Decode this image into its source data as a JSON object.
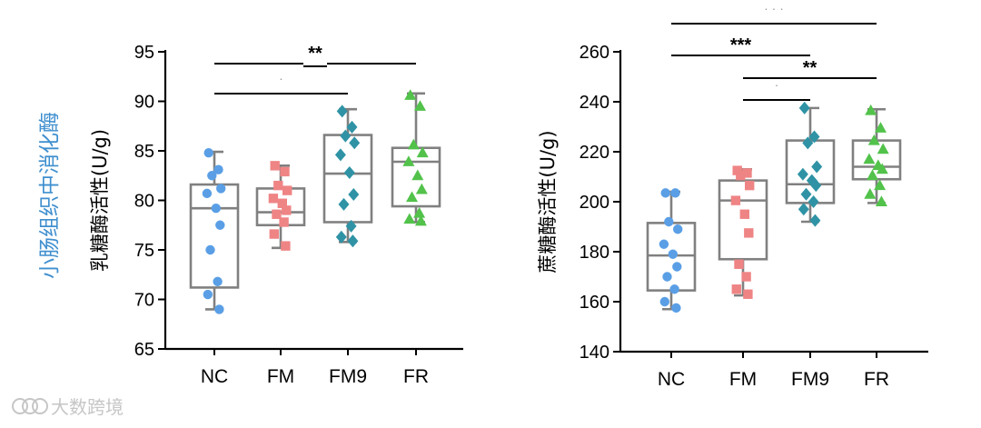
{
  "panel_title": "小肠组织中消化酶",
  "watermark": "大数跨境",
  "colors": {
    "NC": "#5a9fe6",
    "FM": "#ef8485",
    "FM9": "#2f93a5",
    "FR": "#52c24b",
    "box": "#808080",
    "title": "#3f8fcf"
  },
  "chart_data": [
    {
      "type": "box",
      "ylabel": "乳糖酶活性(U/g)",
      "ylim": [
        65,
        95
      ],
      "yticks": [
        65,
        70,
        75,
        80,
        85,
        90,
        95
      ],
      "categories": [
        "NC",
        "FM",
        "FM9",
        "FR"
      ],
      "groups": [
        {
          "name": "NC",
          "marker": "circle",
          "min": 69,
          "q1": 71.2,
          "median": 79.2,
          "q3": 81.6,
          "max": 84.9,
          "points": [
            84.8,
            83.1,
            82.5,
            81.2,
            80.7,
            79.2,
            77.5,
            75.0,
            71.8,
            70.5,
            69.0
          ]
        },
        {
          "name": "FM",
          "marker": "square",
          "min": 75.2,
          "q1": 77.5,
          "median": 78.8,
          "q3": 81.2,
          "max": 83.5,
          "points": [
            83.5,
            82.9,
            81.5,
            81.0,
            80.2,
            79.7,
            79.0,
            78.6,
            77.8,
            76.6,
            75.4
          ]
        },
        {
          "name": "FM9",
          "marker": "diamond",
          "min": 75.8,
          "q1": 77.8,
          "median": 82.7,
          "q3": 86.6,
          "max": 89.2,
          "points": [
            89.0,
            87.4,
            86.5,
            85.8,
            84.6,
            82.8,
            80.6,
            79.6,
            77.4,
            76.3,
            75.9
          ]
        },
        {
          "name": "FR",
          "marker": "triangle",
          "min": 77.8,
          "q1": 79.4,
          "median": 83.9,
          "q3": 85.3,
          "max": 90.8,
          "points": [
            90.6,
            89.5,
            85.6,
            84.8,
            83.9,
            82.5,
            81.1,
            80.3,
            78.7,
            78.1,
            77.9
          ]
        }
      ],
      "significance": [
        {
          "from": "NC",
          "to": "FR",
          "label": "**",
          "level": 1
        },
        {
          "from": "NC",
          "to": "FM9",
          "label": "·",
          "level": 0
        }
      ]
    },
    {
      "type": "box",
      "ylabel": "蔗糖酶活性(U/g)",
      "ylim": [
        140,
        260
      ],
      "yticks": [
        140,
        160,
        180,
        200,
        220,
        240,
        260
      ],
      "categories": [
        "NC",
        "FM",
        "FM9",
        "FR"
      ],
      "groups": [
        {
          "name": "NC",
          "marker": "circle",
          "min": 157,
          "q1": 164.5,
          "median": 178.5,
          "q3": 191.5,
          "max": 204,
          "points": [
            203.5,
            203.5,
            192.0,
            189.0,
            183.0,
            179.0,
            174.0,
            170.0,
            165.0,
            160.0,
            157.5
          ]
        },
        {
          "name": "FM",
          "marker": "square",
          "min": 162.5,
          "q1": 177,
          "median": 200.5,
          "q3": 208.5,
          "max": 213,
          "points": [
            212.5,
            211.5,
            210.5,
            206.5,
            200.5,
            195.0,
            187.5,
            175.0,
            170.0,
            165.0,
            163.0
          ]
        },
        {
          "name": "FM9",
          "marker": "diamond",
          "min": 192,
          "q1": 199.5,
          "median": 207,
          "q3": 224.5,
          "max": 237.5,
          "points": [
            237.5,
            226.0,
            223.5,
            214.0,
            211.0,
            208.5,
            206.5,
            203.0,
            200.0,
            197.0,
            192.5
          ]
        },
        {
          "name": "FR",
          "marker": "triangle",
          "min": 199.5,
          "q1": 209,
          "median": 214,
          "q3": 224.5,
          "max": 237,
          "points": [
            236.5,
            229.5,
            224.5,
            221.0,
            217.0,
            214.5,
            213.0,
            210.5,
            206.5,
            203.0,
            200.0
          ]
        }
      ],
      "significance": [
        {
          "from": "NC",
          "to": "FR",
          "label": "· · ·",
          "level": 3
        },
        {
          "from": "NC",
          "to": "FM9",
          "label": "***",
          "level": 2
        },
        {
          "from": "FM",
          "to": "FR",
          "label": "**",
          "level": 1
        },
        {
          "from": "FM",
          "to": "FM9",
          "label": "·",
          "level": 0
        }
      ]
    }
  ]
}
